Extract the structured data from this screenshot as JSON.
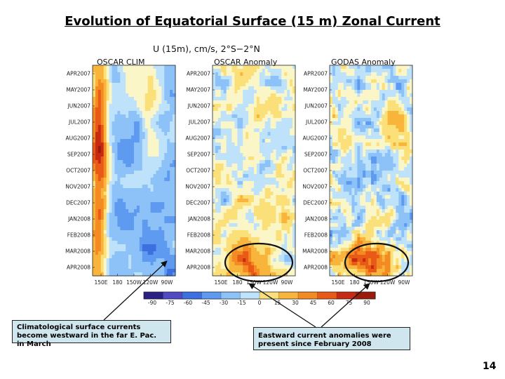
{
  "slide": {
    "title": "Evolution of Equatorial Surface (15 m) Zonal Current",
    "page_number": "14"
  },
  "callouts": {
    "left": "Climatological surface currents become westward in the far E. Pac. in March",
    "right": "Eastward current anomalies were present since February 2008"
  },
  "colors": {
    "callout_bg": "#cfe6ee",
    "scale": [
      "#2a1f85",
      "#5149c4",
      "#3c6fe0",
      "#5e9bf0",
      "#8cc2f8",
      "#bfe2fb",
      "#fbf6c8",
      "#fbe07a",
      "#f9b43c",
      "#f48a22",
      "#e85a16",
      "#c72a12",
      "#9c1a0a"
    ]
  },
  "chart_data": {
    "type": "heatmap",
    "title": "U (15m), cm/s, 2°S−2°N",
    "panels": [
      {
        "name": "OSCAR CLIM",
        "x_ticks": [
          "150E",
          "180",
          "150W",
          "120W",
          "90W"
        ],
        "y_ticks": [
          "APR2007",
          "MAY2007",
          "JUN2007",
          "JUL2007",
          "AUG2007",
          "SEP2007",
          "OCT2007",
          "NOV2007",
          "DEC2007",
          "JAN2008",
          "FEB2008",
          "MAR2008",
          "APR2008"
        ]
      },
      {
        "name": "OSCAR Anomaly",
        "x_ticks": [
          "150E",
          "180",
          "150W",
          "120W",
          "90W"
        ],
        "y_ticks": [
          "APR2007",
          "MAY2007",
          "JUN2007",
          "JUL2007",
          "AUG2007",
          "SEP2007",
          "OCT2007",
          "NOV2007",
          "DEC2007",
          "JAN2008",
          "FEB2008",
          "MAR2008",
          "APR2008"
        ]
      },
      {
        "name": "GODAS Anomaly",
        "x_ticks": [
          "150E",
          "180",
          "150W",
          "120W",
          "90W"
        ],
        "y_ticks": [
          "APR2007",
          "MAY2007",
          "JUN2007",
          "JUL2007",
          "AUG2007",
          "SEP2007",
          "OCT2007",
          "NOV2007",
          "DEC2007",
          "JAN2008",
          "FEB2008",
          "MAR2008",
          "APR2008"
        ]
      }
    ],
    "colorbar": {
      "ticks": [
        "-90",
        "-75",
        "-60",
        "-45",
        "-30",
        "-15",
        "0",
        "15",
        "30",
        "45",
        "60",
        "75",
        "90"
      ]
    }
  }
}
